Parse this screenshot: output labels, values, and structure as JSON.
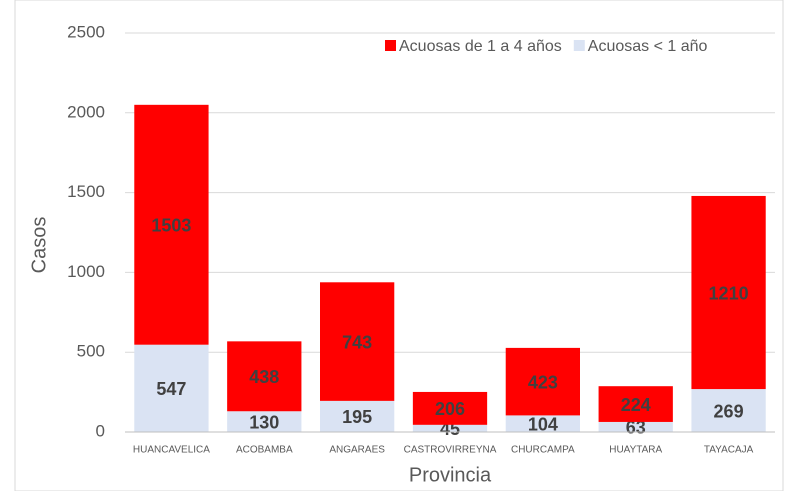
{
  "chart_data": {
    "type": "stacked_bar",
    "categories": [
      "HUANCAVELICA",
      "ACOBAMBA",
      "ANGARAES",
      "CASTROVIRREYNA",
      "CHURCAMPA",
      "HUAYTARA",
      "TAYACAJA"
    ],
    "series": [
      {
        "name": "Acuosas de 1 a 4 años",
        "color": "#ff0000",
        "values": [
          1503,
          438,
          743,
          206,
          423,
          224,
          1210
        ]
      },
      {
        "name": "Acuosas < 1 año",
        "color": "#dae3f3",
        "values": [
          547,
          130,
          195,
          45,
          104,
          63,
          269
        ]
      }
    ],
    "y_label": "Casos",
    "x_label": "Provincia",
    "ylim": [
      0,
      2500
    ],
    "yticks": [
      0,
      500,
      1000,
      1500,
      2000,
      2500
    ],
    "grid": true,
    "legend": "top-right"
  }
}
